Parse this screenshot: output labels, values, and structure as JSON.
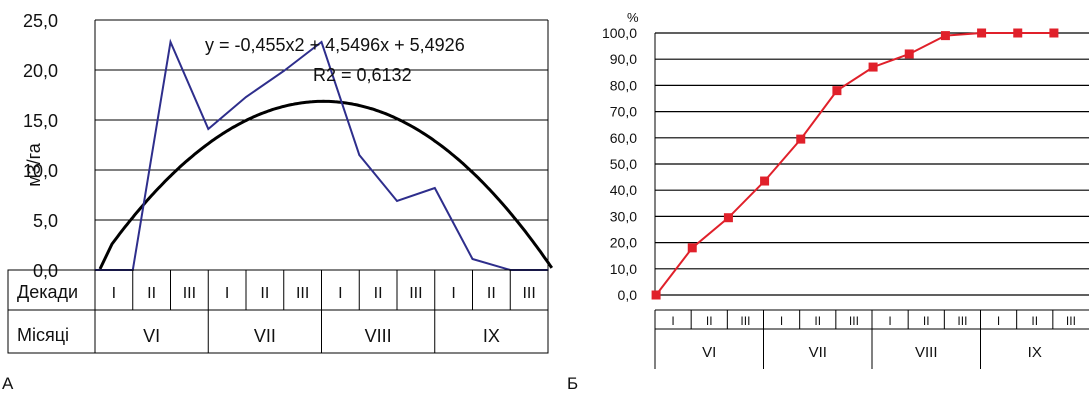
{
  "panels": {
    "a": {
      "label": "А"
    },
    "b": {
      "label": "Б"
    }
  },
  "chart_data": [
    {
      "type": "line",
      "panel": "А",
      "ylabel": "м3/га",
      "ylim": [
        0,
        25
      ],
      "yticks": [
        "0,0",
        "5,0",
        "10,0",
        "15,0",
        "20,0",
        "25,0"
      ],
      "grid": true,
      "row_labels": {
        "decades": "Декади",
        "months": "Місяці"
      },
      "decades": [
        "I",
        "II",
        "III",
        "I",
        "II",
        "III",
        "I",
        "II",
        "III",
        "I",
        "II",
        "III"
      ],
      "months": [
        "VI",
        "VII",
        "VIII",
        "IX"
      ],
      "series": [
        {
          "color": "#2e2e8c",
          "x": [
            0,
            1,
            2,
            3,
            4,
            5,
            6,
            7,
            8,
            9,
            10,
            11,
            12
          ],
          "values": [
            0,
            0,
            22.8,
            14.1,
            17.3,
            19.9,
            22.8,
            11.5,
            6.9,
            8.2,
            1.1,
            0,
            0
          ]
        },
        {
          "color": "#000000",
          "trend": true,
          "x": [
            -0.5,
            11.0
          ],
          "values": [
            0,
            0
          ]
        }
      ],
      "trendline": {
        "equation": "y = -0,455x2 + 4,5496x + 5,4926",
        "r2": "R2 = 0,6132",
        "a": -0.455,
        "b": 4.5496,
        "c": 5.4926
      }
    },
    {
      "type": "line",
      "panel": "Б",
      "unit_label": "%",
      "ylim": [
        0,
        100
      ],
      "yticks": [
        "0,0",
        "10,0",
        "20,0",
        "30,0",
        "40,0",
        "50,0",
        "60,0",
        "70,0",
        "80,0",
        "90,0",
        "100,0"
      ],
      "grid": true,
      "decades": [
        "I",
        "II",
        "III",
        "I",
        "II",
        "III",
        "I",
        "II",
        "III",
        "I",
        "II",
        "III"
      ],
      "months": [
        "VI",
        "VII",
        "VIII",
        "IX"
      ],
      "series": [
        {
          "color": "#e0202a",
          "marker": "square",
          "values": [
            0,
            18,
            29.5,
            43.5,
            59.5,
            78,
            87,
            92,
            99,
            100,
            100,
            100
          ]
        }
      ]
    }
  ]
}
